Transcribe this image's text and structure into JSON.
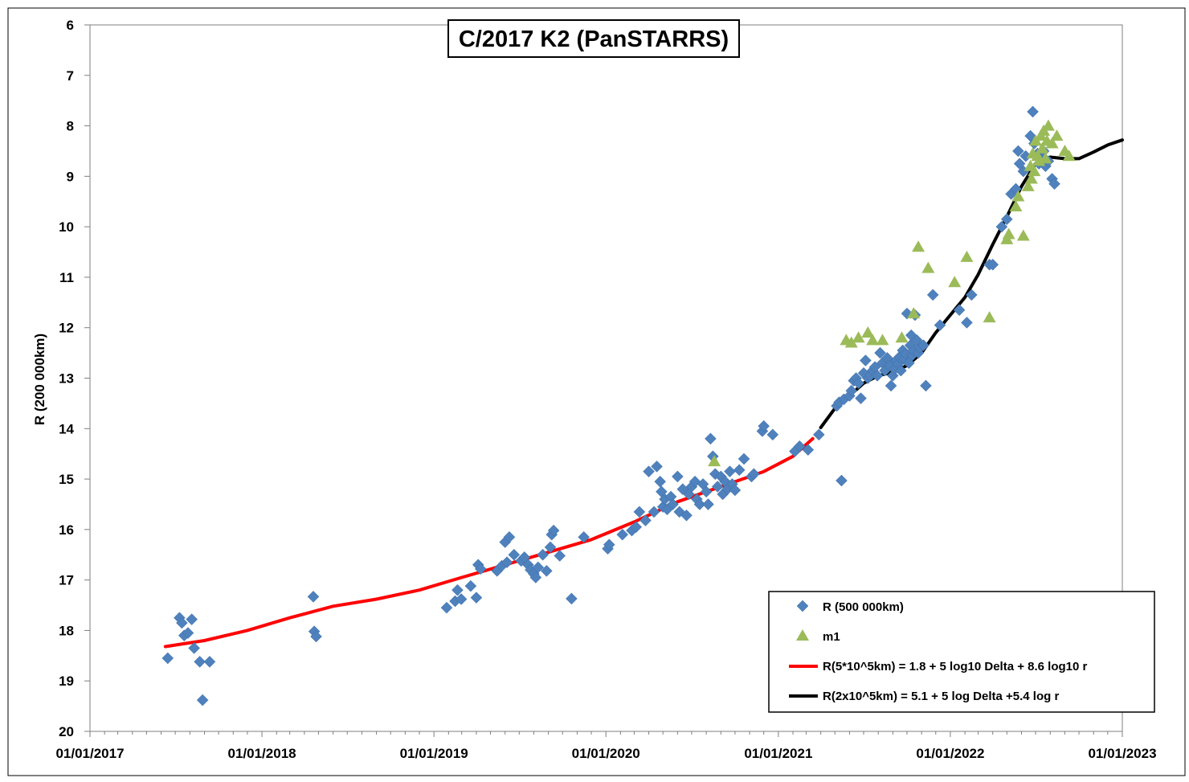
{
  "chart_data": {
    "type": "scatter",
    "title": "C/2017 K2 (PanSTARRS)",
    "xlabel": "",
    "ylabel": "R (200 000km)",
    "x_axis": {
      "type": "date",
      "range": [
        "01/01/2017",
        "01/01/2023"
      ],
      "tick_labels": [
        "01/01/2017",
        "01/01/2018",
        "01/01/2019",
        "01/01/2020",
        "01/01/2021",
        "01/01/2022",
        "01/01/2023"
      ]
    },
    "y_axis": {
      "reversed": true,
      "range": [
        6,
        20
      ],
      "tick_labels": [
        "6",
        "7",
        "8",
        "9",
        "10",
        "11",
        "12",
        "13",
        "14",
        "15",
        "16",
        "17",
        "18",
        "19",
        "20"
      ]
    },
    "grid": false,
    "legend_position": "bottom-right",
    "series": [
      {
        "name": "R (500 000km)",
        "marker": "diamond",
        "color": "#4F81BD",
        "points": [
          [
            "2017-06-15",
            18.55
          ],
          [
            "2017-07-10",
            17.75
          ],
          [
            "2017-07-15",
            17.85
          ],
          [
            "2017-07-20",
            18.1
          ],
          [
            "2017-07-28",
            18.05
          ],
          [
            "2017-08-05",
            17.78
          ],
          [
            "2017-08-10",
            18.35
          ],
          [
            "2017-08-22",
            18.62
          ],
          [
            "2017-08-28",
            19.38
          ],
          [
            "2017-09-12",
            18.62
          ],
          [
            "2018-04-20",
            17.33
          ],
          [
            "2018-04-22",
            18.02
          ],
          [
            "2018-04-26",
            18.12
          ],
          [
            "2019-01-28",
            17.55
          ],
          [
            "2019-02-15",
            17.42
          ],
          [
            "2019-02-20",
            17.2
          ],
          [
            "2019-02-28",
            17.38
          ],
          [
            "2019-03-20",
            17.12
          ],
          [
            "2019-04-01",
            17.35
          ],
          [
            "2019-04-05",
            16.7
          ],
          [
            "2019-04-10",
            16.78
          ],
          [
            "2019-05-15",
            16.82
          ],
          [
            "2019-05-25",
            16.72
          ],
          [
            "2019-06-01",
            16.25
          ],
          [
            "2019-06-05",
            16.65
          ],
          [
            "2019-06-10",
            16.15
          ],
          [
            "2019-06-20",
            16.5
          ],
          [
            "2019-07-05",
            16.62
          ],
          [
            "2019-07-12",
            16.55
          ],
          [
            "2019-07-20",
            16.7
          ],
          [
            "2019-07-25",
            16.8
          ],
          [
            "2019-08-01",
            16.88
          ],
          [
            "2019-08-05",
            16.95
          ],
          [
            "2019-08-10",
            16.75
          ],
          [
            "2019-08-20",
            16.5
          ],
          [
            "2019-08-28",
            16.82
          ],
          [
            "2019-09-05",
            16.35
          ],
          [
            "2019-09-08",
            16.1
          ],
          [
            "2019-09-12",
            16.02
          ],
          [
            "2019-09-25",
            16.52
          ],
          [
            "2019-10-20",
            17.37
          ],
          [
            "2019-11-15",
            16.15
          ],
          [
            "2020-01-05",
            16.38
          ],
          [
            "2020-01-08",
            16.3
          ],
          [
            "2020-02-05",
            16.1
          ],
          [
            "2020-02-25",
            16.02
          ],
          [
            "2020-03-05",
            15.95
          ],
          [
            "2020-03-12",
            15.65
          ],
          [
            "2020-03-25",
            15.82
          ],
          [
            "2020-04-01",
            14.85
          ],
          [
            "2020-04-12",
            15.65
          ],
          [
            "2020-04-18",
            14.75
          ],
          [
            "2020-04-25",
            15.05
          ],
          [
            "2020-04-28",
            15.25
          ],
          [
            "2020-05-01",
            15.55
          ],
          [
            "2020-05-05",
            15.4
          ],
          [
            "2020-05-10",
            15.6
          ],
          [
            "2020-05-18",
            15.35
          ],
          [
            "2020-05-22",
            15.5
          ],
          [
            "2020-06-01",
            14.95
          ],
          [
            "2020-06-05",
            15.65
          ],
          [
            "2020-06-12",
            15.2
          ],
          [
            "2020-06-20",
            15.72
          ],
          [
            "2020-06-25",
            15.3
          ],
          [
            "2020-07-01",
            15.15
          ],
          [
            "2020-07-08",
            15.05
          ],
          [
            "2020-07-12",
            15.4
          ],
          [
            "2020-07-18",
            15.5
          ],
          [
            "2020-07-25",
            15.1
          ],
          [
            "2020-08-01",
            15.25
          ],
          [
            "2020-08-05",
            15.5
          ],
          [
            "2020-08-10",
            14.2
          ],
          [
            "2020-08-15",
            14.55
          ],
          [
            "2020-08-20",
            14.9
          ],
          [
            "2020-08-25",
            15.15
          ],
          [
            "2020-09-01",
            14.95
          ],
          [
            "2020-09-05",
            15.3
          ],
          [
            "2020-09-10",
            15.05
          ],
          [
            "2020-09-15",
            15.2
          ],
          [
            "2020-09-20",
            14.85
          ],
          [
            "2020-09-25",
            15.1
          ],
          [
            "2020-10-01",
            15.22
          ],
          [
            "2020-10-10",
            14.82
          ],
          [
            "2020-10-20",
            14.6
          ],
          [
            "2020-11-05",
            14.95
          ],
          [
            "2020-11-10",
            14.9
          ],
          [
            "2020-11-28",
            14.05
          ],
          [
            "2020-12-01",
            13.95
          ],
          [
            "2020-12-20",
            14.12
          ],
          [
            "2021-02-05",
            14.45
          ],
          [
            "2021-02-15",
            14.35
          ],
          [
            "2021-03-05",
            14.42
          ],
          [
            "2021-03-28",
            14.12
          ],
          [
            "2021-05-05",
            13.55
          ],
          [
            "2021-05-10",
            13.48
          ],
          [
            "2021-05-15",
            15.03
          ],
          [
            "2021-05-20",
            13.42
          ],
          [
            "2021-06-01",
            13.35
          ],
          [
            "2021-06-05",
            13.25
          ],
          [
            "2021-06-10",
            13.05
          ],
          [
            "2021-06-15",
            13.0
          ],
          [
            "2021-06-20",
            13.1
          ],
          [
            "2021-06-25",
            13.4
          ],
          [
            "2021-07-01",
            12.9
          ],
          [
            "2021-07-05",
            12.65
          ],
          [
            "2021-07-10",
            13.0
          ],
          [
            "2021-07-15",
            12.95
          ],
          [
            "2021-07-20",
            12.85
          ],
          [
            "2021-07-25",
            12.78
          ],
          [
            "2021-07-30",
            12.95
          ],
          [
            "2021-08-05",
            12.5
          ],
          [
            "2021-08-10",
            12.7
          ],
          [
            "2021-08-15",
            12.85
          ],
          [
            "2021-08-20",
            12.6
          ],
          [
            "2021-08-25",
            12.75
          ],
          [
            "2021-08-28",
            13.15
          ],
          [
            "2021-09-01",
            12.95
          ],
          [
            "2021-09-05",
            12.82
          ],
          [
            "2021-09-08",
            12.65
          ],
          [
            "2021-09-12",
            12.72
          ],
          [
            "2021-09-15",
            12.58
          ],
          [
            "2021-09-18",
            12.85
          ],
          [
            "2021-09-22",
            12.45
          ],
          [
            "2021-09-25",
            12.62
          ],
          [
            "2021-09-28",
            12.52
          ],
          [
            "2021-10-01",
            11.72
          ],
          [
            "2021-10-05",
            12.7
          ],
          [
            "2021-10-08",
            12.35
          ],
          [
            "2021-10-10",
            12.15
          ],
          [
            "2021-10-12",
            12.55
          ],
          [
            "2021-10-15",
            12.45
          ],
          [
            "2021-10-18",
            11.75
          ],
          [
            "2021-10-22",
            12.25
          ],
          [
            "2021-10-25",
            12.5
          ],
          [
            "2021-10-28",
            12.4
          ],
          [
            "2021-11-05",
            12.35
          ],
          [
            "2021-11-10",
            13.15
          ],
          [
            "2021-11-25",
            11.35
          ],
          [
            "2021-12-10",
            11.95
          ],
          [
            "2022-01-20",
            11.65
          ],
          [
            "2022-02-05",
            11.9
          ],
          [
            "2022-02-15",
            11.35
          ],
          [
            "2022-03-25",
            10.75
          ],
          [
            "2022-04-01",
            10.75
          ],
          [
            "2022-04-20",
            10.0
          ],
          [
            "2022-05-01",
            9.85
          ],
          [
            "2022-05-10",
            9.35
          ],
          [
            "2022-05-20",
            9.25
          ],
          [
            "2022-05-25",
            8.5
          ],
          [
            "2022-05-28",
            8.75
          ],
          [
            "2022-06-05",
            8.9
          ],
          [
            "2022-06-10",
            8.6
          ],
          [
            "2022-06-20",
            8.2
          ],
          [
            "2022-06-25",
            7.72
          ],
          [
            "2022-06-28",
            8.35
          ],
          [
            "2022-07-05",
            8.55
          ],
          [
            "2022-07-08",
            8.75
          ],
          [
            "2022-07-12",
            8.65
          ],
          [
            "2022-07-18",
            8.5
          ],
          [
            "2022-07-22",
            8.8
          ],
          [
            "2022-07-28",
            8.7
          ],
          [
            "2022-08-05",
            9.05
          ],
          [
            "2022-08-10",
            9.15
          ]
        ]
      },
      {
        "name": "m1",
        "marker": "triangle",
        "color": "#9BBB59",
        "points": [
          [
            "2020-08-18",
            14.65
          ],
          [
            "2021-05-25",
            12.25
          ],
          [
            "2021-06-05",
            12.3
          ],
          [
            "2021-06-20",
            12.2
          ],
          [
            "2021-07-10",
            12.1
          ],
          [
            "2021-07-20",
            12.25
          ],
          [
            "2021-08-10",
            12.25
          ],
          [
            "2021-09-20",
            12.2
          ],
          [
            "2021-10-15",
            11.72
          ],
          [
            "2021-10-25",
            10.4
          ],
          [
            "2021-11-15",
            10.82
          ],
          [
            "2022-01-10",
            11.1
          ],
          [
            "2022-02-05",
            10.6
          ],
          [
            "2022-03-25",
            11.8
          ],
          [
            "2022-05-01",
            10.25
          ],
          [
            "2022-05-05",
            10.15
          ],
          [
            "2022-05-20",
            9.6
          ],
          [
            "2022-05-25",
            9.4
          ],
          [
            "2022-06-05",
            10.18
          ],
          [
            "2022-06-15",
            9.2
          ],
          [
            "2022-06-20",
            8.8
          ],
          [
            "2022-06-22",
            9.05
          ],
          [
            "2022-06-25",
            8.55
          ],
          [
            "2022-06-28",
            8.9
          ],
          [
            "2022-07-01",
            8.3
          ],
          [
            "2022-07-05",
            8.6
          ],
          [
            "2022-07-08",
            8.7
          ],
          [
            "2022-07-12",
            8.2
          ],
          [
            "2022-07-15",
            8.45
          ],
          [
            "2022-07-18",
            8.1
          ],
          [
            "2022-07-22",
            8.65
          ],
          [
            "2022-07-25",
            8.3
          ],
          [
            "2022-07-28",
            8.0
          ],
          [
            "2022-08-05",
            8.35
          ],
          [
            "2022-08-15",
            8.2
          ],
          [
            "2022-09-01",
            8.5
          ],
          [
            "2022-09-10",
            8.6
          ]
        ]
      },
      {
        "name": "R(5*10^5km) = 1.8 + 5 log10 Delta + 8.6 log10 r",
        "line": true,
        "color": "#FF0000",
        "points": [
          [
            "2017-06-10",
            18.32
          ],
          [
            "2017-09-01",
            18.2
          ],
          [
            "2017-12-01",
            18.0
          ],
          [
            "2018-03-01",
            17.75
          ],
          [
            "2018-06-01",
            17.52
          ],
          [
            "2018-09-01",
            17.38
          ],
          [
            "2018-12-01",
            17.2
          ],
          [
            "2019-03-01",
            16.95
          ],
          [
            "2019-06-01",
            16.7
          ],
          [
            "2019-09-01",
            16.45
          ],
          [
            "2019-12-01",
            16.2
          ],
          [
            "2020-03-01",
            15.85
          ],
          [
            "2020-06-01",
            15.45
          ],
          [
            "2020-09-01",
            15.15
          ],
          [
            "2020-12-01",
            14.85
          ],
          [
            "2021-02-01",
            14.55
          ],
          [
            "2021-03-15",
            14.2
          ]
        ]
      },
      {
        "name": "R(2x10^5km) = 5.1 + 5 log Delta +5.4 log r",
        "line": true,
        "color": "#000000",
        "points": [
          [
            "2021-04-01",
            13.98
          ],
          [
            "2021-05-01",
            13.6
          ],
          [
            "2021-06-01",
            13.35
          ],
          [
            "2021-07-01",
            13.1
          ],
          [
            "2021-08-01",
            12.95
          ],
          [
            "2021-09-01",
            12.88
          ],
          [
            "2021-10-01",
            12.75
          ],
          [
            "2021-11-01",
            12.5
          ],
          [
            "2021-12-01",
            12.1
          ],
          [
            "2022-01-01",
            11.75
          ],
          [
            "2022-02-01",
            11.4
          ],
          [
            "2022-03-01",
            10.95
          ],
          [
            "2022-04-01",
            10.35
          ],
          [
            "2022-05-01",
            9.8
          ],
          [
            "2022-06-01",
            9.2
          ],
          [
            "2022-07-01",
            8.75
          ],
          [
            "2022-08-01",
            8.62
          ],
          [
            "2022-09-01",
            8.65
          ],
          [
            "2022-10-01",
            8.65
          ],
          [
            "2022-11-01",
            8.52
          ],
          [
            "2022-12-01",
            8.38
          ],
          [
            "2023-01-01",
            8.28
          ]
        ]
      }
    ]
  }
}
